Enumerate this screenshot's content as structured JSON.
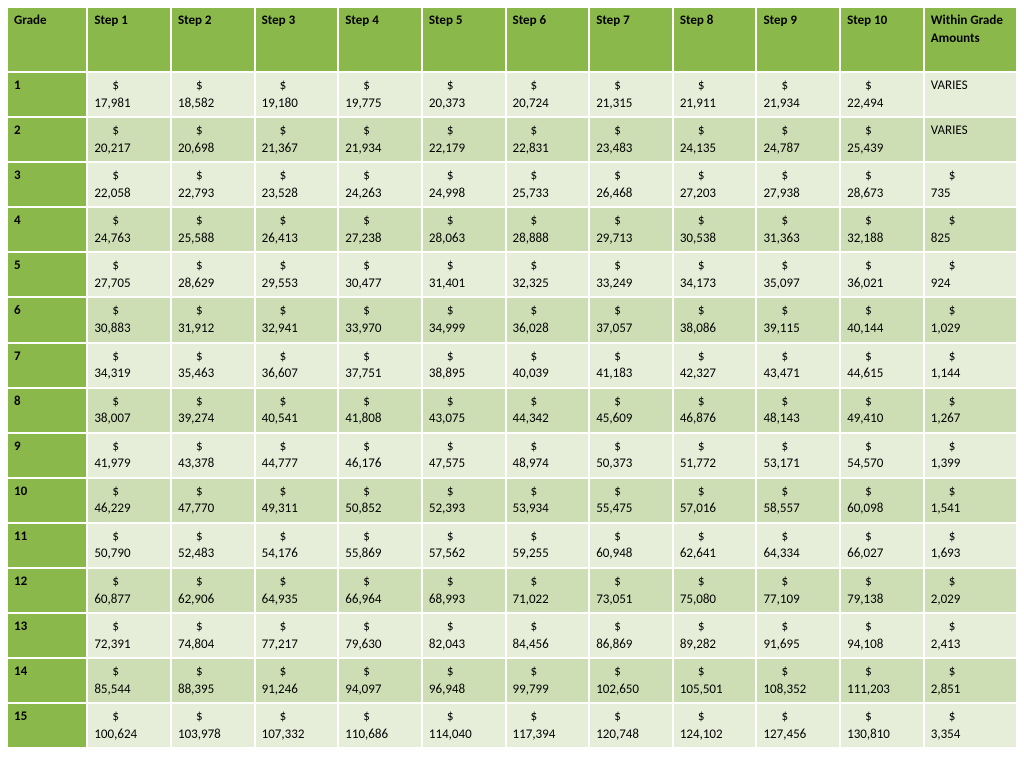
{
  "table": {
    "type": "table",
    "colors": {
      "header_bg": "#8bb84a",
      "rowhead_bg": "#8bb84a",
      "band_light": "#e6eed9",
      "band_dark": "#cddeb4",
      "text": "#000000",
      "border": "#ffffff"
    },
    "font": {
      "family": "Calibri",
      "header_weight": "bold",
      "size_pt": 10
    },
    "columns": [
      "Grade",
      "Step 1",
      "Step 2",
      "Step 3",
      "Step 4",
      "Step 5",
      "Step 6",
      "Step 7",
      "Step 8",
      "Step 9",
      "Step 10",
      "Within Grade Amounts"
    ],
    "currency_symbol": "$",
    "rows": [
      {
        "grade": "1",
        "steps": [
          "17,981",
          "18,582",
          "19,180",
          "19,775",
          "20,373",
          "20,724",
          "21,315",
          "21,911",
          "21,934",
          "22,494"
        ],
        "within": "VARIES",
        "within_is_currency": false
      },
      {
        "grade": "2",
        "steps": [
          "20,217",
          "20,698",
          "21,367",
          "21,934",
          "22,179",
          "22,831",
          "23,483",
          "24,135",
          "24,787",
          "25,439"
        ],
        "within": "VARIES",
        "within_is_currency": false
      },
      {
        "grade": "3",
        "steps": [
          "22,058",
          "22,793",
          "23,528",
          "24,263",
          "24,998",
          "25,733",
          "26,468",
          "27,203",
          "27,938",
          "28,673"
        ],
        "within": "735",
        "within_is_currency": true
      },
      {
        "grade": "4",
        "steps": [
          "24,763",
          "25,588",
          "26,413",
          "27,238",
          "28,063",
          "28,888",
          "29,713",
          "30,538",
          "31,363",
          "32,188"
        ],
        "within": "825",
        "within_is_currency": true
      },
      {
        "grade": "5",
        "steps": [
          "27,705",
          "28,629",
          "29,553",
          "30,477",
          "31,401",
          "32,325",
          "33,249",
          "34,173",
          "35,097",
          "36,021"
        ],
        "within": "924",
        "within_is_currency": true
      },
      {
        "grade": "6",
        "steps": [
          "30,883",
          "31,912",
          "32,941",
          "33,970",
          "34,999",
          "36,028",
          "37,057",
          "38,086",
          "39,115",
          "40,144"
        ],
        "within": "1,029",
        "within_is_currency": true
      },
      {
        "grade": "7",
        "steps": [
          "34,319",
          "35,463",
          "36,607",
          "37,751",
          "38,895",
          "40,039",
          "41,183",
          "42,327",
          "43,471",
          "44,615"
        ],
        "within": "1,144",
        "within_is_currency": true
      },
      {
        "grade": "8",
        "steps": [
          "38,007",
          "39,274",
          "40,541",
          "41,808",
          "43,075",
          "44,342",
          "45,609",
          "46,876",
          "48,143",
          "49,410"
        ],
        "within": "1,267",
        "within_is_currency": true
      },
      {
        "grade": "9",
        "steps": [
          "41,979",
          "43,378",
          "44,777",
          "46,176",
          "47,575",
          "48,974",
          "50,373",
          "51,772",
          "53,171",
          "54,570"
        ],
        "within": "1,399",
        "within_is_currency": true
      },
      {
        "grade": "10",
        "steps": [
          "46,229",
          "47,770",
          "49,311",
          "50,852",
          "52,393",
          "53,934",
          "55,475",
          "57,016",
          "58,557",
          "60,098"
        ],
        "within": "1,541",
        "within_is_currency": true
      },
      {
        "grade": "11",
        "steps": [
          "50,790",
          "52,483",
          "54,176",
          "55,869",
          "57,562",
          "59,255",
          "60,948",
          "62,641",
          "64,334",
          "66,027"
        ],
        "within": "1,693",
        "within_is_currency": true
      },
      {
        "grade": "12",
        "steps": [
          "60,877",
          "62,906",
          "64,935",
          "66,964",
          "68,993",
          "71,022",
          "73,051",
          "75,080",
          "77,109",
          "79,138"
        ],
        "within": "2,029",
        "within_is_currency": true
      },
      {
        "grade": "13",
        "steps": [
          "72,391",
          "74,804",
          "77,217",
          "79,630",
          "82,043",
          "84,456",
          "86,869",
          "89,282",
          "91,695",
          "94,108"
        ],
        "within": "2,413",
        "within_is_currency": true
      },
      {
        "grade": "14",
        "steps": [
          "85,544",
          "88,395",
          "91,246",
          "94,097",
          "96,948",
          "99,799",
          "102,650",
          "105,501",
          "108,352",
          "111,203"
        ],
        "within": "2,851",
        "within_is_currency": true
      },
      {
        "grade": "15",
        "steps": [
          "100,624",
          "103,978",
          "107,332",
          "110,686",
          "114,040",
          "117,394",
          "120,748",
          "124,102",
          "127,456",
          "130,810"
        ],
        "within": "3,354",
        "within_is_currency": true
      }
    ]
  }
}
